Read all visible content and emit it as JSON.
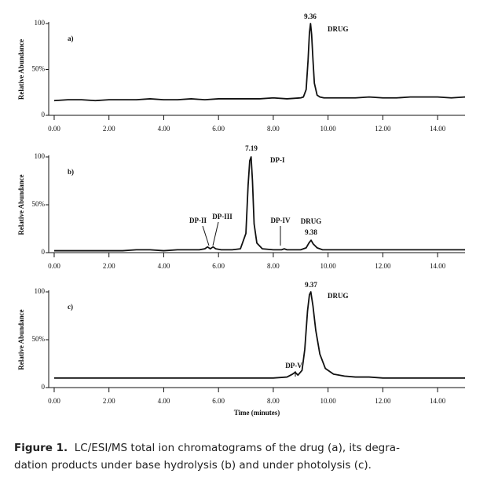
{
  "chart_data": [
    {
      "type": "line",
      "label": "a)",
      "ylabel": "Relative Abundance",
      "x": [
        0,
        0.5,
        1,
        1.5,
        2,
        2.5,
        3,
        3.5,
        4,
        4.5,
        5,
        5.5,
        6,
        6.5,
        7,
        7.5,
        8,
        8.5,
        9,
        9.1,
        9.2,
        9.27,
        9.32,
        9.36,
        9.4,
        9.45,
        9.5,
        9.6,
        9.7,
        9.85,
        10,
        10.5,
        11,
        11.5,
        12,
        12.5,
        13,
        13.5,
        14,
        14.5,
        15
      ],
      "values": [
        16,
        17,
        17,
        16,
        17,
        17,
        17,
        18,
        17,
        17,
        18,
        17,
        18,
        18,
        18,
        18,
        19,
        18,
        19,
        20,
        28,
        60,
        90,
        100,
        88,
        60,
        35,
        22,
        20,
        19,
        19,
        19,
        19,
        20,
        19,
        19,
        20,
        20,
        20,
        19,
        20
      ],
      "color": "#111111",
      "xlim": [
        -0.2,
        15
      ],
      "ylim": [
        0,
        100
      ],
      "xticks": [
        {
          "value": 0,
          "label": "0.00"
        },
        {
          "value": 2,
          "label": "2.00"
        },
        {
          "value": 4,
          "label": "4.00"
        },
        {
          "value": 6,
          "label": "6.00"
        },
        {
          "value": 8,
          "label": "8.00"
        },
        {
          "value": 10,
          "label": "10.00"
        },
        {
          "value": 12,
          "label": "12.00"
        },
        {
          "value": 14,
          "label": "14.00"
        }
      ],
      "yticks": [
        0,
        {
          "value": 50,
          "label": "50%"
        },
        100
      ],
      "annotations": [
        "9.36",
        "DRUG"
      ]
    },
    {
      "type": "line",
      "label": "b)",
      "ylabel": "Relative Abundance",
      "x": [
        0,
        0.5,
        1,
        1.5,
        2,
        2.5,
        3,
        3.5,
        4,
        4.5,
        5,
        5.3,
        5.5,
        5.6,
        5.7,
        5.8,
        5.9,
        6.1,
        6.5,
        6.8,
        7,
        7.08,
        7.14,
        7.19,
        7.24,
        7.3,
        7.4,
        7.6,
        8,
        8.3,
        8.4,
        8.5,
        9,
        9.2,
        9.3,
        9.38,
        9.46,
        9.6,
        9.8,
        10,
        10.5,
        11,
        11.5,
        12,
        12.5,
        13,
        13.5,
        14,
        14.5,
        15
      ],
      "values": [
        2,
        2,
        2,
        2,
        2,
        2,
        3,
        3,
        2,
        3,
        3,
        3,
        4,
        6,
        4,
        6,
        4,
        3,
        3,
        4,
        20,
        70,
        96,
        100,
        75,
        30,
        10,
        4,
        3,
        3,
        4,
        3,
        3,
        5,
        10,
        13,
        9,
        5,
        3,
        3,
        3,
        3,
        3,
        3,
        3,
        3,
        3,
        3,
        3,
        3
      ],
      "color": "#111111",
      "xlim": [
        -0.2,
        15
      ],
      "ylim": [
        0,
        100
      ],
      "xticks": [
        {
          "value": 0,
          "label": "0.00"
        },
        {
          "value": 2,
          "label": "2.00"
        },
        {
          "value": 4,
          "label": "4.00"
        },
        {
          "value": 6,
          "label": "6.00"
        },
        {
          "value": 8,
          "label": "8.00"
        },
        {
          "value": 10,
          "label": "10.00"
        },
        {
          "value": 12,
          "label": "12.00"
        },
        {
          "value": 14,
          "label": "14.00"
        }
      ],
      "yticks": [
        0,
        {
          "value": 50,
          "label": "50%"
        },
        100
      ],
      "annotations": [
        "7.19",
        "DP-I",
        "DP-II",
        "DP-III",
        "DP-IV",
        "DRUG",
        "9.38"
      ]
    },
    {
      "type": "line",
      "label": "c)",
      "ylabel": "Relative Abundance",
      "xlabel": "Time (minutes)",
      "x": [
        0,
        0.5,
        1,
        1.5,
        2,
        2.5,
        3,
        3.5,
        4,
        4.5,
        5,
        5.5,
        6,
        6.5,
        7,
        7.5,
        8,
        8.5,
        8.7,
        8.8,
        8.9,
        9.05,
        9.15,
        9.25,
        9.32,
        9.37,
        9.45,
        9.55,
        9.7,
        9.9,
        10.2,
        10.6,
        11,
        11.5,
        12,
        12.5,
        13,
        13.5,
        14,
        14.5,
        15
      ],
      "values": [
        10,
        10,
        10,
        10,
        10,
        10,
        10,
        10,
        10,
        10,
        10,
        10,
        10,
        10,
        10,
        10,
        10,
        11,
        14,
        16,
        13,
        18,
        40,
        80,
        97,
        100,
        85,
        60,
        35,
        20,
        14,
        12,
        11,
        11,
        10,
        10,
        10,
        10,
        10,
        10,
        10
      ],
      "color": "#111111",
      "xlim": [
        -0.2,
        15
      ],
      "ylim": [
        0,
        100
      ],
      "xticks": [
        {
          "value": 0,
          "label": "0.00"
        },
        {
          "value": 2,
          "label": "2.00"
        },
        {
          "value": 4,
          "label": "4.00"
        },
        {
          "value": 6,
          "label": "6.00"
        },
        {
          "value": 8,
          "label": "8.00"
        },
        {
          "value": 10,
          "label": "10.00"
        },
        {
          "value": 12,
          "label": "12.00"
        },
        {
          "value": 14,
          "label": "14.00"
        }
      ],
      "yticks": [
        0,
        {
          "value": 50,
          "label": "50%"
        },
        100
      ],
      "annotations": [
        "9.37",
        "DRUG",
        "DP-V"
      ]
    }
  ],
  "caption": {
    "label": "Figure 1.",
    "lines": [
      "LC/ESI/MS total ion chromatograms of the drug (a), its degra-",
      "dation products under base hydrolysis (b) and under photolysis (c)."
    ]
  }
}
